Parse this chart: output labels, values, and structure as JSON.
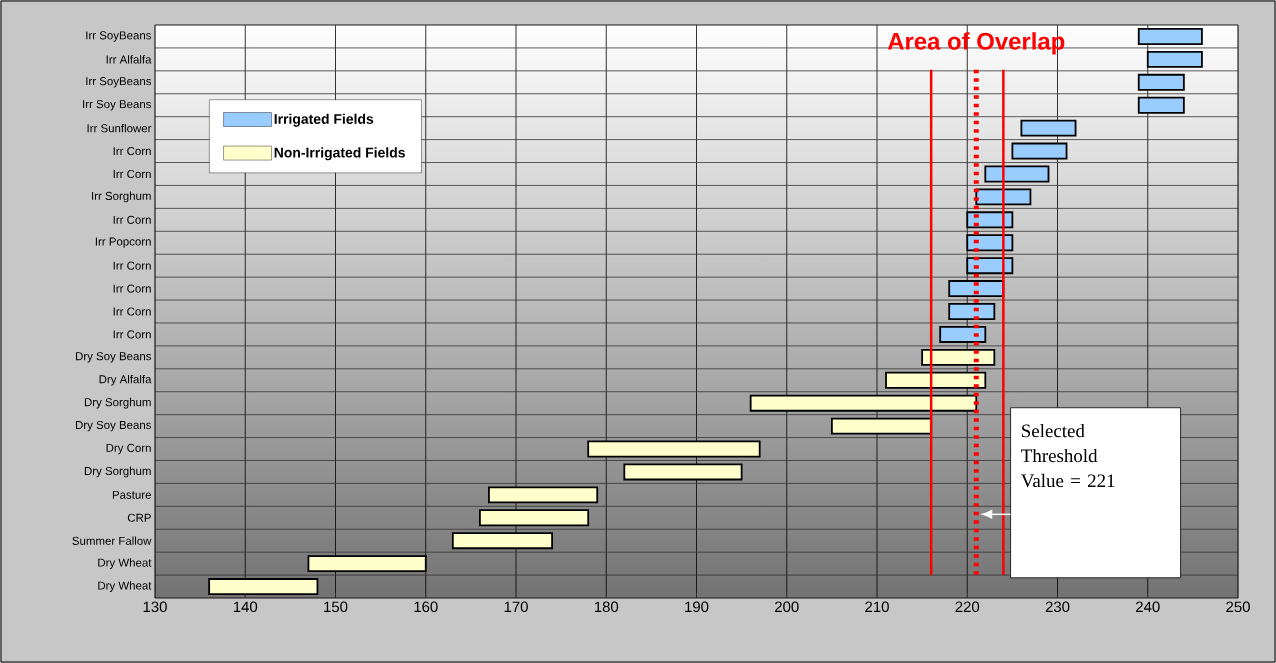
{
  "chart_data": {
    "type": "bar",
    "orientation": "horizontal",
    "categories": [
      "Irr SoyBeans",
      "Irr Alfalfa",
      "Irr SoyBeans",
      "Irr Soy Beans",
      "Irr Sunflower",
      "Irr Corn",
      "Irr Corn",
      "Irr Sorghum",
      "Irr Corn",
      "Irr Popcorn",
      "Irr Corn",
      "Irr Corn",
      "Irr Corn",
      "Irr Corn",
      "Dry Soy Beans",
      "Dry Alfalfa",
      "Dry Sorghum",
      "Dry Soy Beans",
      "Dry Corn",
      "Dry Sorghum",
      "Pasture",
      "CRP",
      "Summer Fallow",
      "Dry Wheat",
      "Dry Wheat"
    ],
    "series": [
      {
        "name": "Irrigated Fields",
        "color": "#99ccff",
        "base": [
          239,
          240,
          239,
          239,
          226,
          225,
          222,
          221,
          220,
          220,
          220,
          218,
          218,
          217,
          null,
          null,
          null,
          null,
          null,
          null,
          null,
          null,
          null,
          null,
          null
        ],
        "values": [
          7,
          6,
          5,
          5,
          6,
          6,
          7,
          6,
          5,
          5,
          5,
          6,
          5,
          5,
          null,
          null,
          null,
          null,
          null,
          null,
          null,
          null,
          null,
          null,
          null
        ]
      },
      {
        "name": "Non-Irrigated Fields",
        "color": "#ffffcc",
        "base": [
          null,
          null,
          null,
          null,
          null,
          null,
          null,
          null,
          null,
          null,
          null,
          null,
          null,
          null,
          215,
          211,
          196,
          205,
          178,
          182,
          167,
          166,
          163,
          147,
          136
        ],
        "values": [
          null,
          null,
          null,
          null,
          null,
          null,
          null,
          null,
          null,
          null,
          null,
          null,
          null,
          null,
          8,
          11,
          25,
          11,
          19,
          13,
          12,
          12,
          11,
          13,
          12
        ]
      }
    ],
    "xlim": [
      130,
      250
    ],
    "xticks": [
      130,
      140,
      150,
      160,
      170,
      180,
      190,
      200,
      210,
      220,
      230,
      240,
      250
    ],
    "grid": true,
    "legend": "top left",
    "ref_lines": [
      {
        "axis": "x",
        "value": 216,
        "color": "#ff0000",
        "line_style": "solid"
      },
      {
        "axis": "x",
        "value": 221,
        "color": "#ff0000",
        "line_style": "dotted",
        "label": "Selected Threshold Value = 221"
      },
      {
        "axis": "x",
        "value": 224,
        "color": "#ff0000",
        "line_style": "solid"
      }
    ],
    "annotations": [
      "Area of Overlap"
    ]
  }
}
